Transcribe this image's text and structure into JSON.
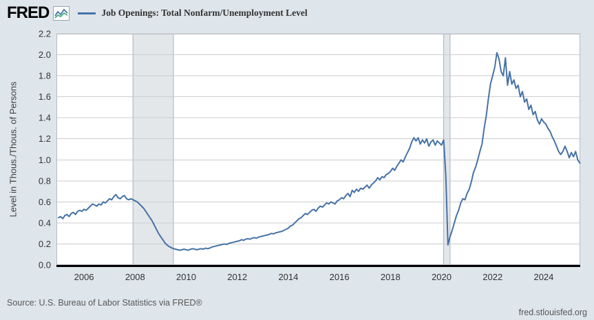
{
  "header": {
    "brand": "FRED",
    "logo_icon": "fred-graph-icon"
  },
  "footer": {
    "source": "Source: U.S. Bureau of Labor Statistics via FRED®",
    "site": "fred.stlouisfed.org"
  },
  "colors": {
    "page_bg": "#dee5eb",
    "plot_bg": "#ffffff",
    "grid": "#cccccc",
    "plot_border": "#b7bcc1",
    "axis": "#000000",
    "tick_text": "#333333",
    "muted_text": "#575757",
    "recession_fill": "#e3e7ea",
    "recession_edge": "#a9b0b7",
    "series_blue": "#4572a7"
  },
  "chart_data": {
    "type": "line",
    "title": "Job Openings: Total Nonfarm/Unemployment Level",
    "ylabel": "Level in Thous./Thous. of Persons",
    "xlabel": "",
    "line_color": "#4572a7",
    "grid": true,
    "legend_position": "top-left",
    "xlim": [
      2004.92,
      2025.43
    ],
    "ylim": [
      0,
      2.2
    ],
    "yticks": [
      0.0,
      0.2,
      0.4,
      0.6,
      0.8,
      1.0,
      1.2,
      1.4,
      1.6,
      1.8,
      2.0,
      2.2
    ],
    "xticks": [
      2006,
      2008,
      2010,
      2012,
      2014,
      2016,
      2018,
      2020,
      2022,
      2024
    ],
    "recession_bands": [
      [
        2007.917,
        2009.5
      ],
      [
        2020.083,
        2020.333
      ]
    ],
    "x_start": 2005.0,
    "x_step_months": 1,
    "values": [
      0.45,
      0.46,
      0.44,
      0.47,
      0.48,
      0.46,
      0.49,
      0.5,
      0.48,
      0.51,
      0.52,
      0.51,
      0.53,
      0.52,
      0.54,
      0.56,
      0.58,
      0.57,
      0.56,
      0.58,
      0.57,
      0.6,
      0.59,
      0.61,
      0.63,
      0.62,
      0.65,
      0.67,
      0.64,
      0.63,
      0.65,
      0.66,
      0.63,
      0.62,
      0.63,
      0.62,
      0.61,
      0.6,
      0.58,
      0.56,
      0.54,
      0.51,
      0.48,
      0.45,
      0.42,
      0.38,
      0.34,
      0.3,
      0.27,
      0.24,
      0.21,
      0.19,
      0.175,
      0.165,
      0.155,
      0.15,
      0.145,
      0.14,
      0.145,
      0.15,
      0.145,
      0.14,
      0.15,
      0.155,
      0.15,
      0.145,
      0.15,
      0.155,
      0.15,
      0.16,
      0.155,
      0.16,
      0.17,
      0.175,
      0.18,
      0.185,
      0.19,
      0.195,
      0.2,
      0.195,
      0.205,
      0.21,
      0.215,
      0.22,
      0.225,
      0.23,
      0.24,
      0.235,
      0.245,
      0.25,
      0.245,
      0.255,
      0.26,
      0.255,
      0.265,
      0.27,
      0.275,
      0.28,
      0.285,
      0.29,
      0.3,
      0.295,
      0.305,
      0.31,
      0.315,
      0.32,
      0.33,
      0.34,
      0.35,
      0.37,
      0.38,
      0.4,
      0.42,
      0.44,
      0.45,
      0.47,
      0.49,
      0.48,
      0.5,
      0.52,
      0.53,
      0.51,
      0.54,
      0.56,
      0.55,
      0.57,
      0.59,
      0.58,
      0.6,
      0.59,
      0.58,
      0.61,
      0.62,
      0.64,
      0.63,
      0.66,
      0.68,
      0.65,
      0.71,
      0.69,
      0.72,
      0.7,
      0.73,
      0.72,
      0.74,
      0.76,
      0.73,
      0.76,
      0.78,
      0.8,
      0.83,
      0.81,
      0.84,
      0.83,
      0.86,
      0.87,
      0.89,
      0.92,
      0.9,
      0.94,
      0.97,
      1.0,
      0.98,
      1.03,
      1.07,
      1.11,
      1.17,
      1.21,
      1.18,
      1.21,
      1.15,
      1.19,
      1.16,
      1.2,
      1.13,
      1.17,
      1.19,
      1.14,
      1.18,
      1.16,
      1.14,
      1.19,
      0.85,
      0.19,
      0.27,
      0.33,
      0.4,
      0.47,
      0.52,
      0.59,
      0.63,
      0.62,
      0.68,
      0.72,
      0.79,
      0.88,
      0.93,
      1.0,
      1.08,
      1.15,
      1.3,
      1.42,
      1.58,
      1.72,
      1.8,
      1.88,
      2.02,
      1.96,
      1.84,
      1.8,
      1.97,
      1.71,
      1.84,
      1.72,
      1.76,
      1.68,
      1.71,
      1.6,
      1.65,
      1.55,
      1.58,
      1.48,
      1.52,
      1.43,
      1.46,
      1.38,
      1.34,
      1.39,
      1.36,
      1.34,
      1.3,
      1.27,
      1.22,
      1.18,
      1.13,
      1.08,
      1.05,
      1.08,
      1.13,
      1.08,
      1.02,
      1.07,
      1.03,
      1.08,
      1.0,
      0.97
    ]
  }
}
